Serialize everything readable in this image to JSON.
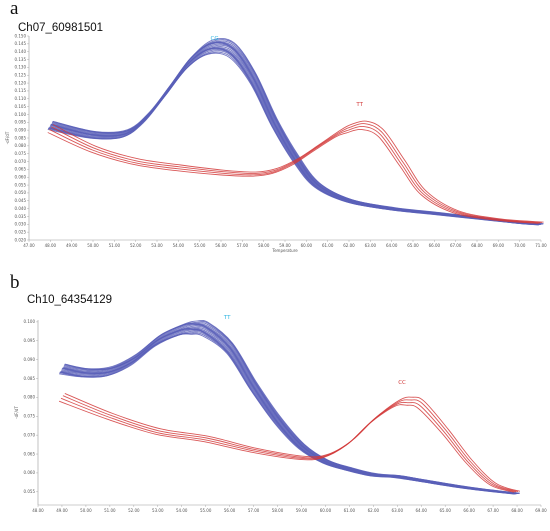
{
  "chart_data": [
    {
      "type": "line",
      "panel_letter": "a",
      "title": "Ch07_60981501",
      "xlabel": "Temperature",
      "ylabel": "-dF/dT",
      "xlim": [
        47.0,
        71.0
      ],
      "ylim": [
        0.02,
        0.15
      ],
      "x_ticks": [
        "47.00",
        "48.00",
        "49.00",
        "50.00",
        "51.00",
        "52.00",
        "53.00",
        "54.00",
        "55.00",
        "56.00",
        "57.00",
        "58.00",
        "59.00",
        "60.00",
        "61.00",
        "62.00",
        "63.00",
        "64.00",
        "65.00",
        "66.00",
        "67.00",
        "68.00",
        "69.00",
        "70.00",
        "71.00"
      ],
      "y_ticks": [
        "0.020",
        "0.025",
        "0.030",
        "0.035",
        "0.040",
        "0.045",
        "0.050",
        "0.055",
        "0.060",
        "0.065",
        "0.070",
        "0.075",
        "0.080",
        "0.085",
        "0.090",
        "0.095",
        "0.100",
        "0.105",
        "0.110",
        "0.115",
        "0.120",
        "0.125",
        "0.130",
        "0.135",
        "0.140",
        "0.145",
        "0.150"
      ],
      "annotations": [
        {
          "text": "CG",
          "x": 55.7,
          "y": 0.1475,
          "color": "#2bb3e0"
        },
        {
          "text": "TT",
          "x": 62.5,
          "y": 0.1055,
          "color": "#d23a3a"
        }
      ],
      "series": [
        {
          "group": "CG",
          "color": "#5a60b8",
          "count": 18,
          "x": [
            48.0,
            50.0,
            51.5,
            52.5,
            53.5,
            54.5,
            55.5,
            56.5,
            57.5,
            58.5,
            59.5,
            60.5,
            62.0,
            64.0,
            66.0,
            68.0,
            70.0,
            71.0
          ],
          "y": [
            0.093,
            0.087,
            0.088,
            0.098,
            0.115,
            0.133,
            0.143,
            0.141,
            0.123,
            0.095,
            0.072,
            0.055,
            0.045,
            0.04,
            0.037,
            0.034,
            0.031,
            0.03
          ]
        },
        {
          "group": "TT",
          "color": "#d23a3a",
          "count": 4,
          "x": [
            48.0,
            50.0,
            52.0,
            54.0,
            56.0,
            57.5,
            58.5,
            59.5,
            60.5,
            61.5,
            62.0,
            62.7,
            63.5,
            64.5,
            65.5,
            67.0,
            69.0,
            71.0
          ],
          "y": [
            0.091,
            0.078,
            0.07,
            0.066,
            0.063,
            0.062,
            0.064,
            0.07,
            0.079,
            0.088,
            0.091,
            0.093,
            0.088,
            0.069,
            0.05,
            0.038,
            0.033,
            0.031
          ]
        }
      ]
    },
    {
      "type": "line",
      "panel_letter": "b",
      "title": "Ch10_64354129",
      "xlabel": "",
      "ylabel": "-dF/dT",
      "xlim": [
        48.0,
        69.0
      ],
      "ylim": [
        0.0515,
        0.1005
      ],
      "x_ticks": [
        "48.00",
        "49.00",
        "50.00",
        "51.00",
        "52.00",
        "53.00",
        "54.00",
        "55.00",
        "56.00",
        "57.00",
        "58.00",
        "59.00",
        "60.00",
        "61.00",
        "62.00",
        "63.00",
        "64.00",
        "65.00",
        "66.00",
        "67.00",
        "68.00",
        "69.00"
      ],
      "y_ticks": [
        "0.055",
        "0.060",
        "0.065",
        "0.070",
        "0.075",
        "0.080",
        "0.085",
        "0.090",
        "0.095",
        "0.100"
      ],
      "annotations": [
        {
          "text": "TT",
          "x": 55.9,
          "y": 0.1008,
          "color": "#2bb3e0"
        },
        {
          "text": "CC",
          "x": 63.2,
          "y": 0.0836,
          "color": "#d23a3a"
        }
      ],
      "series": [
        {
          "group": "TT",
          "color": "#5a60b8",
          "count": 18,
          "x": [
            49.0,
            50.0,
            51.0,
            52.0,
            53.0,
            54.0,
            54.5,
            55.0,
            56.0,
            57.0,
            58.0,
            59.0,
            60.0,
            61.0,
            62.0,
            63.0,
            64.0,
            66.0,
            68.0
          ],
          "y": [
            0.0875,
            0.0865,
            0.087,
            0.09,
            0.095,
            0.098,
            0.0985,
            0.098,
            0.093,
            0.083,
            0.074,
            0.067,
            0.063,
            0.061,
            0.0595,
            0.059,
            0.058,
            0.056,
            0.0545
          ]
        },
        {
          "group": "CC",
          "color": "#d23a3a",
          "count": 4,
          "x": [
            49.0,
            51.0,
            53.0,
            55.0,
            57.0,
            59.0,
            60.0,
            61.0,
            62.0,
            63.0,
            63.5,
            64.0,
            65.0,
            66.0,
            67.0,
            68.0
          ],
          "y": [
            0.08,
            0.075,
            0.071,
            0.069,
            0.066,
            0.064,
            0.0645,
            0.068,
            0.074,
            0.0785,
            0.079,
            0.078,
            0.071,
            0.063,
            0.057,
            0.055
          ]
        }
      ]
    }
  ]
}
